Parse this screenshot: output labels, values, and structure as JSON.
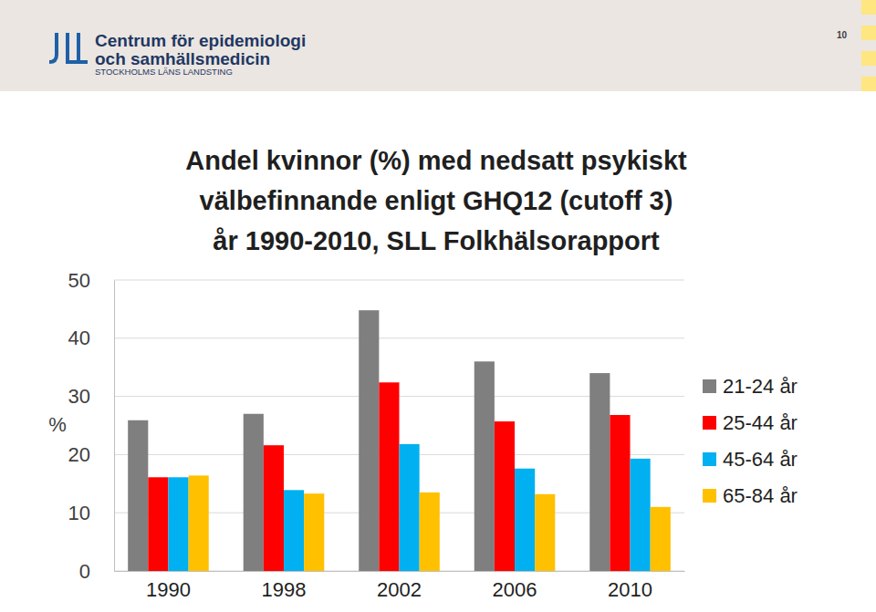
{
  "header": {
    "organization": [
      "Centrum för epidemiologi",
      "och samhällsmedicin"
    ],
    "county": "STOCKHOLMS LÄNS LANDSTING",
    "page": "10"
  },
  "chart_data": {
    "type": "bar",
    "title": "Andel kvinnor (%) med nedsatt psykiskt\nvälbefinnande enligt GHQ12 (cutoff 3)\når 1990-2010, SLL Folkhälsorapport",
    "y_label": "%",
    "categories": [
      "1990",
      "1998",
      "2002",
      "2006",
      "2010"
    ],
    "series": [
      {
        "name": "21-24 år",
        "color": "#7f7f7f",
        "values": [
          25.9,
          27.0,
          44.8,
          36.0,
          34.0
        ]
      },
      {
        "name": "25-44 år",
        "color": "#ff0000",
        "values": [
          16.1,
          21.6,
          32.4,
          25.7,
          26.8
        ]
      },
      {
        "name": "45-64 år",
        "color": "#00b0f0",
        "values": [
          16.1,
          13.9,
          21.8,
          17.6,
          19.3
        ]
      },
      {
        "name": "65-84 år",
        "color": "#ffc000",
        "values": [
          16.4,
          13.3,
          13.5,
          13.2,
          11.0
        ]
      }
    ],
    "ylim": [
      0,
      50
    ],
    "yticks": [
      0,
      10,
      20,
      30,
      40,
      50
    ],
    "grid": true,
    "legend": "right"
  }
}
